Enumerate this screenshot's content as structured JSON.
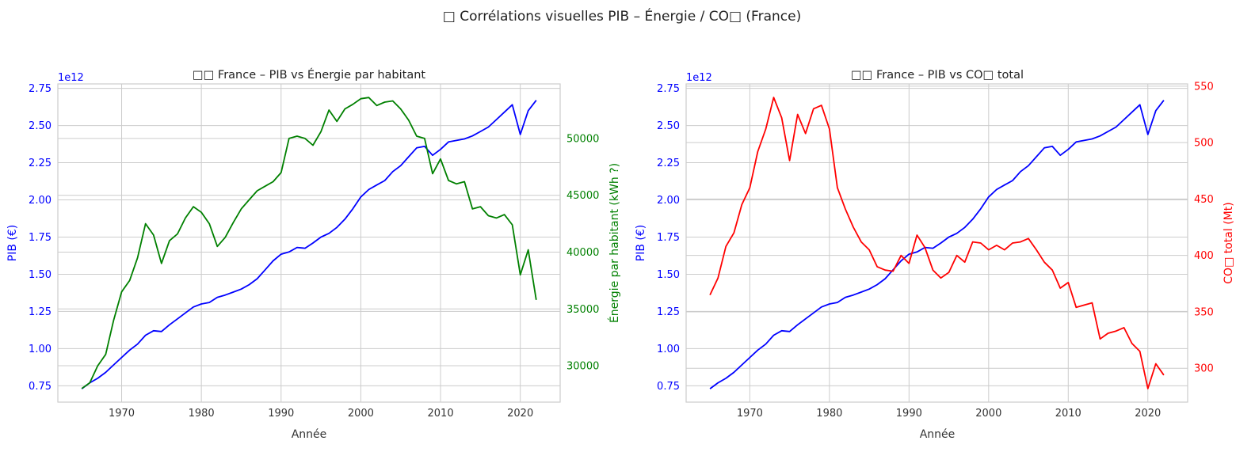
{
  "figure": {
    "title": "□ Corrélations visuelles PIB – Énergie / CO□ (France)"
  },
  "chart_data": [
    {
      "type": "line",
      "title": "□□ France – PIB vs Énergie par habitant",
      "xlabel": "Année",
      "ylabel_left": "PIB (€)",
      "ylabel_right": "Énergie par habitant (kWh ?)",
      "offset_text": "1e12",
      "xlim": [
        1962,
        2025
      ],
      "ylim_left": [
        0.64,
        2.78
      ],
      "ylim_right": [
        26800,
        54800
      ],
      "xticks": [
        1970,
        1980,
        1990,
        2000,
        2010,
        2020
      ],
      "yticks_left": [
        0.75,
        1.0,
        1.25,
        1.5,
        1.75,
        2.0,
        2.25,
        2.5,
        2.75
      ],
      "yticks_left_labels": [
        "0.75",
        "1.00",
        "1.25",
        "1.50",
        "1.75",
        "2.00",
        "2.25",
        "2.50",
        "2.75"
      ],
      "yticks_right": [
        30000,
        35000,
        40000,
        45000,
        50000
      ],
      "yticks_right_labels": [
        "30000",
        "35000",
        "40000",
        "45000",
        "50000"
      ],
      "grid": true,
      "series": [
        {
          "axis": "left",
          "color": "#0000ff",
          "x": [
            1965,
            1966,
            1967,
            1968,
            1969,
            1970,
            1971,
            1972,
            1973,
            1974,
            1975,
            1976,
            1977,
            1978,
            1979,
            1980,
            1981,
            1982,
            1983,
            1984,
            1985,
            1986,
            1987,
            1988,
            1989,
            1990,
            1991,
            1992,
            1993,
            1994,
            1995,
            1996,
            1997,
            1998,
            1999,
            2000,
            2001,
            2002,
            2003,
            2004,
            2005,
            2006,
            2007,
            2008,
            2009,
            2010,
            2011,
            2012,
            2013,
            2014,
            2015,
            2016,
            2017,
            2018,
            2019,
            2020,
            2021,
            2022
          ],
          "y": [
            0.73,
            0.77,
            0.8,
            0.84,
            0.89,
            0.94,
            0.99,
            1.03,
            1.09,
            1.12,
            1.115,
            1.16,
            1.2,
            1.24,
            1.28,
            1.3,
            1.31,
            1.345,
            1.36,
            1.38,
            1.4,
            1.43,
            1.47,
            1.53,
            1.59,
            1.635,
            1.65,
            1.68,
            1.675,
            1.71,
            1.75,
            1.775,
            1.815,
            1.87,
            1.94,
            2.02,
            2.07,
            2.1,
            2.13,
            2.19,
            2.23,
            2.29,
            2.35,
            2.36,
            2.3,
            2.34,
            2.39,
            2.4,
            2.41,
            2.43,
            2.46,
            2.49,
            2.54,
            2.59,
            2.64,
            2.44,
            2.6,
            2.67
          ]
        },
        {
          "axis": "right",
          "color": "#008000",
          "x": [
            1965,
            1966,
            1967,
            1968,
            1969,
            1970,
            1971,
            1972,
            1973,
            1974,
            1975,
            1976,
            1977,
            1978,
            1979,
            1980,
            1981,
            1982,
            1983,
            1984,
            1985,
            1986,
            1987,
            1988,
            1989,
            1990,
            1991,
            1992,
            1993,
            1994,
            1995,
            1996,
            1997,
            1998,
            1999,
            2000,
            2001,
            2002,
            2003,
            2004,
            2005,
            2006,
            2007,
            2008,
            2009,
            2010,
            2011,
            2012,
            2013,
            2014,
            2015,
            2016,
            2017,
            2018,
            2019,
            2020,
            2021,
            2022
          ],
          "y": [
            28000,
            28500,
            30000,
            31000,
            34000,
            36500,
            37500,
            39500,
            42500,
            41500,
            39000,
            41000,
            41600,
            43000,
            44000,
            43500,
            42500,
            40500,
            41300,
            42600,
            43800,
            44600,
            45400,
            45800,
            46200,
            47000,
            50000,
            50200,
            50000,
            49400,
            50600,
            52500,
            51500,
            52600,
            53000,
            53500,
            53600,
            52900,
            53200,
            53300,
            52600,
            51600,
            50200,
            50000,
            46900,
            48200,
            46300,
            46000,
            46200,
            43800,
            44000,
            43200,
            43000,
            43300,
            42400,
            38000,
            40200,
            35800
          ]
        }
      ]
    },
    {
      "type": "line",
      "title": "□□ France – PIB vs CO□ total",
      "xlabel": "Année",
      "ylabel_left": "PIB (€)",
      "ylabel_right": "CO□ total (Mt)",
      "offset_text": "1e12",
      "xlim": [
        1962,
        2025
      ],
      "ylim_left": [
        0.64,
        2.78
      ],
      "ylim_right": [
        270,
        552
      ],
      "xticks": [
        1970,
        1980,
        1990,
        2000,
        2010,
        2020
      ],
      "yticks_left": [
        0.75,
        1.0,
        1.25,
        1.5,
        1.75,
        2.0,
        2.25,
        2.5,
        2.75
      ],
      "yticks_left_labels": [
        "0.75",
        "1.00",
        "1.25",
        "1.50",
        "1.75",
        "2.00",
        "2.25",
        "2.50",
        "2.75"
      ],
      "yticks_right": [
        300,
        350,
        400,
        450,
        500,
        550
      ],
      "yticks_right_labels": [
        "300",
        "350",
        "400",
        "450",
        "500",
        "550"
      ],
      "grid": true,
      "series": [
        {
          "axis": "left",
          "color": "#0000ff",
          "x": [
            1965,
            1966,
            1967,
            1968,
            1969,
            1970,
            1971,
            1972,
            1973,
            1974,
            1975,
            1976,
            1977,
            1978,
            1979,
            1980,
            1981,
            1982,
            1983,
            1984,
            1985,
            1986,
            1987,
            1988,
            1989,
            1990,
            1991,
            1992,
            1993,
            1994,
            1995,
            1996,
            1997,
            1998,
            1999,
            2000,
            2001,
            2002,
            2003,
            2004,
            2005,
            2006,
            2007,
            2008,
            2009,
            2010,
            2011,
            2012,
            2013,
            2014,
            2015,
            2016,
            2017,
            2018,
            2019,
            2020,
            2021,
            2022
          ],
          "y": [
            0.73,
            0.77,
            0.8,
            0.84,
            0.89,
            0.94,
            0.99,
            1.03,
            1.09,
            1.12,
            1.115,
            1.16,
            1.2,
            1.24,
            1.28,
            1.3,
            1.31,
            1.345,
            1.36,
            1.38,
            1.4,
            1.43,
            1.47,
            1.53,
            1.59,
            1.635,
            1.65,
            1.68,
            1.675,
            1.71,
            1.75,
            1.775,
            1.815,
            1.87,
            1.94,
            2.02,
            2.07,
            2.1,
            2.13,
            2.19,
            2.23,
            2.29,
            2.35,
            2.36,
            2.3,
            2.34,
            2.39,
            2.4,
            2.41,
            2.43,
            2.46,
            2.49,
            2.54,
            2.59,
            2.64,
            2.44,
            2.6,
            2.67
          ]
        },
        {
          "axis": "right",
          "color": "#ff0000",
          "x": [
            1965,
            1966,
            1967,
            1968,
            1969,
            1970,
            1971,
            1972,
            1973,
            1974,
            1975,
            1976,
            1977,
            1978,
            1979,
            1980,
            1981,
            1982,
            1983,
            1984,
            1985,
            1986,
            1987,
            1988,
            1989,
            1990,
            1991,
            1992,
            1993,
            1994,
            1995,
            1996,
            1997,
            1998,
            1999,
            2000,
            2001,
            2002,
            2003,
            2004,
            2005,
            2006,
            2007,
            2008,
            2009,
            2010,
            2011,
            2012,
            2013,
            2014,
            2015,
            2016,
            2017,
            2018,
            2019,
            2020,
            2021,
            2022
          ],
          "y": [
            365,
            380,
            408,
            420,
            445,
            460,
            492,
            512,
            540,
            522,
            484,
            525,
            508,
            530,
            533,
            512,
            460,
            441,
            425,
            412,
            405,
            390,
            387,
            386,
            400,
            393,
            418,
            407,
            387,
            380,
            385,
            400,
            394,
            412,
            411,
            405,
            409,
            405,
            411,
            412,
            415,
            405,
            394,
            387,
            371,
            376,
            354,
            356,
            358,
            326,
            331,
            333,
            336,
            322,
            315,
            282,
            304,
            294
          ]
        }
      ]
    }
  ]
}
